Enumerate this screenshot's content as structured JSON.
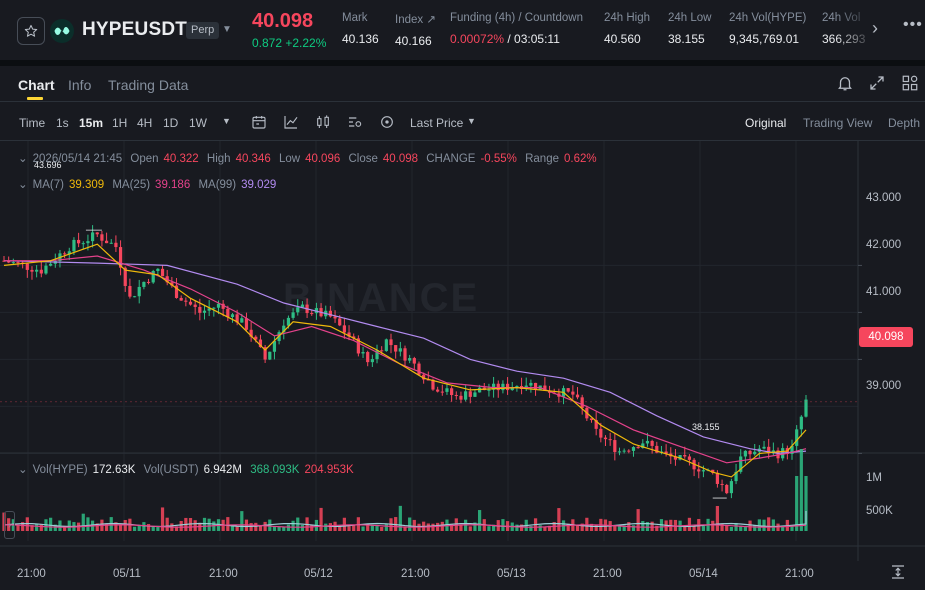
{
  "ticker": {
    "symbol": "HYPEUSDT",
    "contract_type": "Perp",
    "last_price": "40.098",
    "change_text": "0.872 +2.22%",
    "stats": [
      {
        "label": "Mark",
        "value": "40.136"
      },
      {
        "label": "Index ↗",
        "value": "40.166"
      },
      {
        "label": "Funding (4h) / Countdown",
        "value_neg": "0.00072%",
        "value_rest": " / 03:05:11"
      },
      {
        "label": "24h High",
        "value": "40.560"
      },
      {
        "label": "24h Low",
        "value": "38.155"
      },
      {
        "label": "24h Vol(HYPE)",
        "value": "9,345,769.01"
      },
      {
        "label": "24h Vol",
        "value": "366,293"
      }
    ],
    "icons": {
      "favorite": "star-icon",
      "next": "chevron-right-icon",
      "more": "more-dots-icon"
    }
  },
  "tabs": [
    {
      "label": "Chart",
      "active": true
    },
    {
      "label": "Info",
      "active": false
    },
    {
      "label": "Trading Data",
      "active": false
    }
  ],
  "toolbar": {
    "time_label": "Time",
    "intervals": [
      "1s",
      "15m",
      "1H",
      "4H",
      "1D",
      "1W"
    ],
    "active_interval": "15m",
    "price_type": "Last Price",
    "views": [
      "Original",
      "Trading View",
      "Depth"
    ],
    "active_view": "Original"
  },
  "ohlc": {
    "date": "2026/05/14 21:45",
    "open_label": "Open",
    "open": "40.322",
    "high_label": "High",
    "high": "40.346",
    "low_label": "Low",
    "low": "40.096",
    "close_label": "Close",
    "close": "40.098",
    "change_label": "CHANGE",
    "change": "-0.55%",
    "range_label": "Range",
    "range": "0.62%"
  },
  "ma": {
    "ma7_label": "MA(7)",
    "ma7": "39.309",
    "ma25_label": "MA(25)",
    "ma25": "39.186",
    "ma99_label": "MA(99)",
    "ma99": "39.029"
  },
  "volume_legend": {
    "vol_hype_label": "Vol(HYPE)",
    "vol_hype": "172.63K",
    "vol_usdt_label": "Vol(USDT)",
    "vol_usdt": "6.942M",
    "ma1": "368.093K",
    "ma2": "204.953K"
  },
  "chart_data": {
    "type": "candlestick",
    "y_ticks": [
      "43.000",
      "42.000",
      "41.000",
      "39.000"
    ],
    "y_range": [
      38.0,
      44.0
    ],
    "vol_ticks": [
      "1M",
      "500K"
    ],
    "x_ticks": [
      "21:00",
      "05/11",
      "21:00",
      "05/12",
      "21:00",
      "05/13",
      "21:00",
      "05/14",
      "21:00"
    ],
    "current_price": "40.098",
    "high_marker": "43.696",
    "low_marker": "38.155",
    "watermark": "BINANCE",
    "colors": {
      "up": "#2ebd85",
      "down": "#f6465d",
      "ma7": "#f0b90b",
      "ma25": "#e4428b",
      "ma99": "#b28bf0"
    },
    "close_path": [
      [
        0,
        43.1
      ],
      [
        8,
        42.9
      ],
      [
        14,
        43.4
      ],
      [
        20,
        43.65
      ],
      [
        24,
        43.4
      ],
      [
        27,
        42.3
      ],
      [
        30,
        42.65
      ],
      [
        33,
        42.9
      ],
      [
        37,
        42.4
      ],
      [
        42,
        42.0
      ],
      [
        46,
        42.15
      ],
      [
        52,
        41.7
      ],
      [
        56,
        41.0
      ],
      [
        60,
        41.8
      ],
      [
        64,
        42.1
      ],
      [
        70,
        41.9
      ],
      [
        74,
        41.5
      ],
      [
        78,
        40.95
      ],
      [
        82,
        41.4
      ],
      [
        87,
        41.0
      ],
      [
        92,
        40.45
      ],
      [
        97,
        40.2
      ],
      [
        102,
        40.35
      ],
      [
        107,
        40.4
      ],
      [
        112,
        40.5
      ],
      [
        117,
        40.35
      ],
      [
        122,
        40.25
      ],
      [
        127,
        39.45
      ],
      [
        132,
        39.05
      ],
      [
        137,
        39.25
      ],
      [
        142,
        38.95
      ],
      [
        147,
        38.8
      ],
      [
        152,
        38.55
      ],
      [
        155,
        38.2
      ],
      [
        158,
        38.9
      ],
      [
        162,
        39.1
      ],
      [
        166,
        39.0
      ],
      [
        169,
        39.1
      ],
      [
        172,
        40.1
      ]
    ],
    "ma7": [
      [
        0,
        43.0
      ],
      [
        10,
        43.1
      ],
      [
        20,
        43.45
      ],
      [
        26,
        42.9
      ],
      [
        33,
        42.8
      ],
      [
        40,
        42.3
      ],
      [
        50,
        41.8
      ],
      [
        56,
        41.2
      ],
      [
        62,
        41.8
      ],
      [
        70,
        41.7
      ],
      [
        80,
        41.2
      ],
      [
        90,
        40.6
      ],
      [
        100,
        40.35
      ],
      [
        110,
        40.4
      ],
      [
        120,
        40.3
      ],
      [
        128,
        39.6
      ],
      [
        135,
        39.2
      ],
      [
        145,
        38.9
      ],
      [
        152,
        38.6
      ],
      [
        156,
        38.5
      ],
      [
        162,
        39.0
      ],
      [
        168,
        39.05
      ],
      [
        172,
        39.5
      ]
    ],
    "ma25": [
      [
        0,
        43.1
      ],
      [
        10,
        43.1
      ],
      [
        20,
        43.2
      ],
      [
        30,
        42.9
      ],
      [
        40,
        42.5
      ],
      [
        50,
        42.0
      ],
      [
        58,
        41.5
      ],
      [
        66,
        41.7
      ],
      [
        75,
        41.4
      ],
      [
        85,
        40.9
      ],
      [
        95,
        40.5
      ],
      [
        105,
        40.4
      ],
      [
        115,
        40.4
      ],
      [
        125,
        40.0
      ],
      [
        135,
        39.5
      ],
      [
        145,
        39.15
      ],
      [
        155,
        38.8
      ],
      [
        162,
        38.9
      ],
      [
        168,
        39.0
      ],
      [
        172,
        39.1
      ]
    ],
    "ma99": [
      [
        0,
        43.1
      ],
      [
        20,
        43.05
      ],
      [
        35,
        43.0
      ],
      [
        50,
        42.6
      ],
      [
        60,
        42.2
      ],
      [
        70,
        41.95
      ],
      [
        80,
        41.7
      ],
      [
        90,
        41.45
      ],
      [
        100,
        41.0
      ],
      [
        110,
        40.75
      ],
      [
        120,
        40.6
      ],
      [
        130,
        40.3
      ],
      [
        140,
        39.8
      ],
      [
        150,
        39.35
      ],
      [
        160,
        39.1
      ],
      [
        166,
        39.0
      ],
      [
        172,
        39.05
      ]
    ]
  }
}
